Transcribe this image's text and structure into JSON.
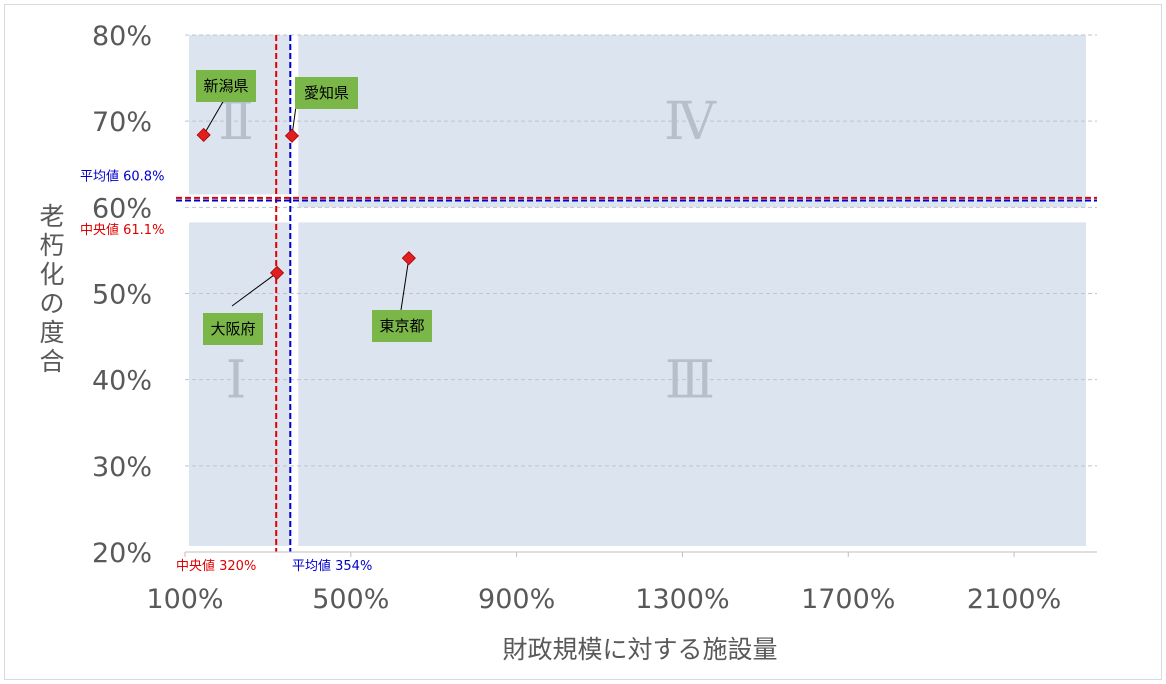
{
  "chart_data": {
    "type": "scatter",
    "xlabel": "財政規模に対する施設量",
    "ylabel": "老朽化の度合",
    "xlim": [
      100,
      2300
    ],
    "ylim": [
      20,
      80
    ],
    "x_ticks": [
      100,
      500,
      900,
      1300,
      1700,
      2100
    ],
    "x_tick_labels": [
      "100%",
      "500%",
      "900%",
      "1300%",
      "1700%",
      "2100%"
    ],
    "y_ticks": [
      20,
      30,
      40,
      50,
      60,
      70,
      80
    ],
    "y_tick_labels": [
      "20%",
      "30%",
      "40%",
      "50%",
      "60%",
      "70%",
      "80%"
    ],
    "grid": "horizontal dashed",
    "marker_color": "#e02020",
    "points": [
      {
        "label": "新潟県",
        "x": 145,
        "y": 68.4
      },
      {
        "label": "愛知県",
        "x": 358,
        "y": 68.3
      },
      {
        "label": "大阪府",
        "x": 322,
        "y": 52.4
      },
      {
        "label": "東京都",
        "x": 640,
        "y": 54.1
      }
    ],
    "reference_lines": {
      "median_x": {
        "label": "中央値 320%",
        "value": 320,
        "color": "#e00000"
      },
      "mean_x": {
        "label": "平均値 354%",
        "value": 354,
        "color": "#0000cc"
      },
      "median_y": {
        "label": "中央値 61.1%",
        "value": 61.1,
        "color": "#e00000"
      },
      "mean_y": {
        "label": "平均値 60.8%",
        "value": 60.8,
        "color": "#0000cc"
      }
    },
    "quadrants": [
      {
        "label": "I",
        "glyph": "Ⅰ"
      },
      {
        "label": "II",
        "glyph": "Ⅱ"
      },
      {
        "label": "III",
        "glyph": "Ⅲ"
      },
      {
        "label": "IV",
        "glyph": "Ⅳ"
      }
    ],
    "quadrant_fill": "#dce4ef",
    "label_fill": "#7ab648"
  }
}
